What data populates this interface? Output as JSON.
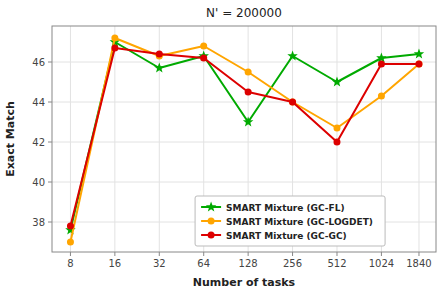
{
  "chart_data": {
    "type": "line",
    "title": "N' = 200000",
    "xlabel": "Number of tasks",
    "ylabel": "Exact Match",
    "x": [
      8,
      16,
      32,
      64,
      128,
      256,
      512,
      1024,
      1840
    ],
    "series": [
      {
        "name": "SMART Mixture (GC-FL)",
        "color": "#00aa00",
        "marker": "star",
        "values": [
          37.6,
          47.0,
          45.7,
          46.3,
          43.0,
          46.3,
          45.0,
          46.2,
          46.4
        ]
      },
      {
        "name": "SMART Mixture (GC-LOGDET)",
        "color": "#ffa500",
        "marker": "circle",
        "values": [
          37.0,
          47.2,
          46.3,
          46.8,
          45.5,
          44.0,
          42.7,
          44.3,
          45.9
        ]
      },
      {
        "name": "SMART Mixture (GC-GC)",
        "color": "#dd0000",
        "marker": "circle",
        "values": [
          37.8,
          46.7,
          46.4,
          46.2,
          44.5,
          44.0,
          42.0,
          45.9,
          45.9
        ]
      }
    ],
    "log": "x",
    "xlim": [
      6,
      2400
    ],
    "xticks": [
      8,
      16,
      32,
      64,
      128,
      256,
      512,
      1024,
      1840
    ],
    "ylim": [
      36.5,
      47.8
    ],
    "yticks": [
      38,
      40,
      42,
      44,
      46
    ],
    "grid": true,
    "legend": "bottom"
  }
}
